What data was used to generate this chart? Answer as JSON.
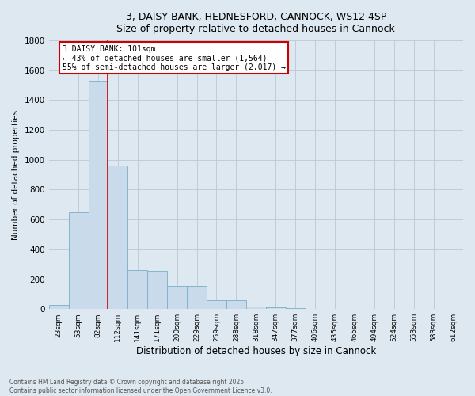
{
  "title_line1": "3, DAISY BANK, HEDNESFORD, CANNOCK, WS12 4SP",
  "title_line2": "Size of property relative to detached houses in Cannock",
  "xlabel": "Distribution of detached houses by size in Cannock",
  "ylabel": "Number of detached properties",
  "categories": [
    "23sqm",
    "53sqm",
    "82sqm",
    "112sqm",
    "141sqm",
    "171sqm",
    "200sqm",
    "229sqm",
    "259sqm",
    "288sqm",
    "318sqm",
    "347sqm",
    "377sqm",
    "406sqm",
    "435sqm",
    "465sqm",
    "494sqm",
    "524sqm",
    "553sqm",
    "583sqm",
    "612sqm"
  ],
  "values": [
    30,
    650,
    1530,
    960,
    260,
    255,
    155,
    155,
    60,
    60,
    15,
    10,
    5,
    2,
    1,
    0,
    0,
    0,
    0,
    0,
    0
  ],
  "bar_color": "#c9daea",
  "bar_edge_color": "#7aafc8",
  "grid_color": "#b8c8d8",
  "background_color": "#dde8f0",
  "annotation_line1": "3 DAISY BANK: 101sqm",
  "annotation_line2": "← 43% of detached houses are smaller (1,564)",
  "annotation_line3": "55% of semi-detached houses are larger (2,017) →",
  "annotation_box_color": "#ffffff",
  "annotation_box_edge_color": "#cc0000",
  "vline_color": "#cc0000",
  "vline_x_index": 2.5,
  "ylim": [
    0,
    1800
  ],
  "yticks": [
    0,
    200,
    400,
    600,
    800,
    1000,
    1200,
    1400,
    1600,
    1800
  ],
  "footer_line1": "Contains HM Land Registry data © Crown copyright and database right 2025.",
  "footer_line2": "Contains public sector information licensed under the Open Government Licence v3.0."
}
